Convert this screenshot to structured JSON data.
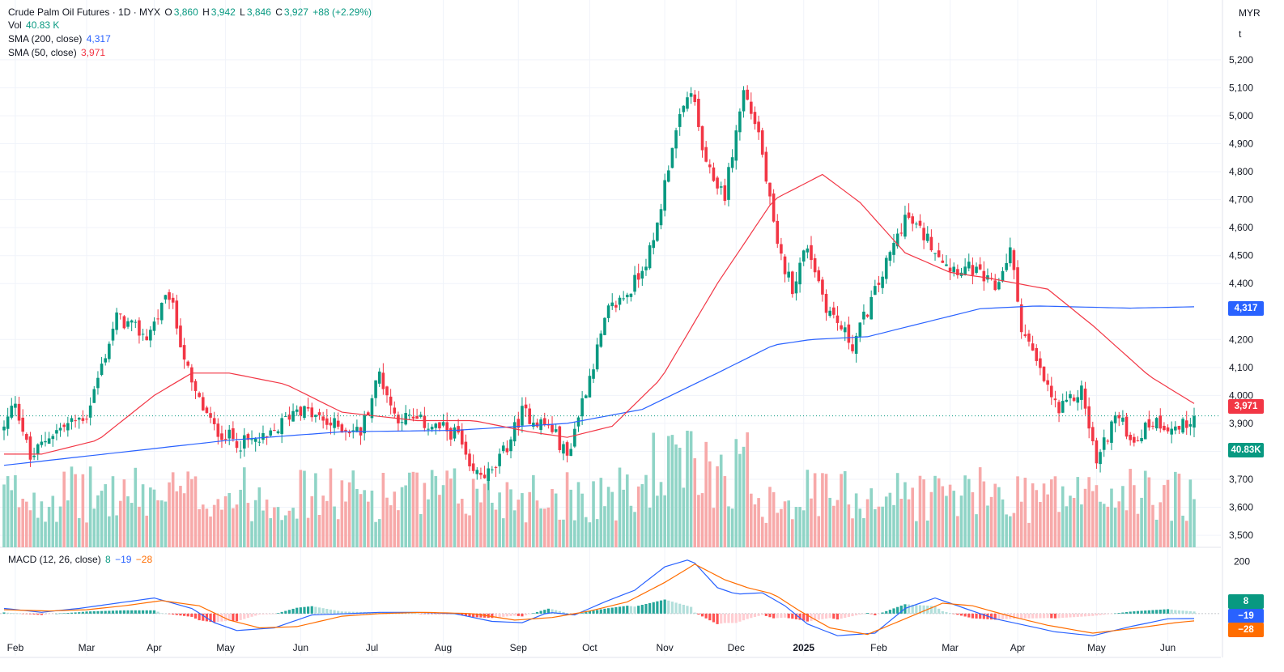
{
  "header": {
    "symbol": "Crude Palm Oil Futures · 1D · MYX",
    "o_label": "O",
    "o": "3,860",
    "h_label": "H",
    "h": "3,942",
    "l_label": "L",
    "l": "3,846",
    "c_label": "C",
    "c": "3,927",
    "change": "+88 (+2.29%)",
    "vol_label": "Vol",
    "vol": "40.83 K",
    "sma200_label": "SMA (200, close)",
    "sma200": "4,317",
    "sma50_label": "SMA (50, close)",
    "sma50": "3,971",
    "macd_label": "MACD (12, 26, close)",
    "macd_hist": "8",
    "macd_line": "−19",
    "macd_signal": "−28"
  },
  "price_axis": {
    "currency": "MYR",
    "unit": "t"
  },
  "badges": {
    "sma200": "4,317",
    "sma50": "3,971",
    "volume": "40.83K",
    "hist": "8",
    "macd": "−19",
    "signal": "−28"
  },
  "colors": {
    "up": "#089981",
    "down": "#f23645",
    "sma200": "#2962ff",
    "sma50": "#f23645",
    "macd": "#2962ff",
    "signal": "#ff6d00"
  },
  "chart_data": {
    "type": "candlestick",
    "price_ticks": [
      "5,200",
      "5,100",
      "5,000",
      "4,900",
      "4,800",
      "4,700",
      "4,600",
      "4,500",
      "4,400",
      "4,200",
      "4,100",
      "4,000",
      "3,900",
      "3,800",
      "3,700",
      "3,600",
      "3,500"
    ],
    "price_tick_values": [
      5200,
      5100,
      5000,
      4900,
      4800,
      4700,
      4600,
      4500,
      4400,
      4200,
      4100,
      4000,
      3900,
      3800,
      3700,
      3600,
      3500
    ],
    "ylim": [
      3480,
      5220
    ],
    "macd_ticks": [
      "200"
    ],
    "macd_tick_values": [
      200
    ],
    "macd_ylim": [
      -100,
      230
    ],
    "x_labels": [
      "Feb",
      "Mar",
      "Apr",
      "May",
      "Jun",
      "Jul",
      "Aug",
      "Sep",
      "Oct",
      "Nov",
      "Dec",
      "2025",
      "Feb",
      "Mar",
      "Apr",
      "May",
      "Jun"
    ],
    "x_label_index": [
      3,
      22,
      40,
      59,
      79,
      98,
      117,
      137,
      156,
      176,
      195,
      213,
      233,
      252,
      270,
      291,
      310
    ],
    "total_bars": 318,
    "last_close": 3927,
    "price_path": [
      [
        0,
        3880
      ],
      [
        3,
        3985
      ],
      [
        7,
        3770
      ],
      [
        12,
        3860
      ],
      [
        22,
        3930
      ],
      [
        30,
        4280
      ],
      [
        38,
        4210
      ],
      [
        44,
        4360
      ],
      [
        50,
        4030
      ],
      [
        56,
        3880
      ],
      [
        63,
        3830
      ],
      [
        70,
        3840
      ],
      [
        78,
        3960
      ],
      [
        86,
        3900
      ],
      [
        95,
        3870
      ],
      [
        100,
        4080
      ],
      [
        104,
        3930
      ],
      [
        112,
        3900
      ],
      [
        121,
        3860
      ],
      [
        124,
        3720
      ],
      [
        130,
        3720
      ],
      [
        134,
        3820
      ],
      [
        138,
        3940
      ],
      [
        146,
        3880
      ],
      [
        150,
        3780
      ],
      [
        154,
        3980
      ],
      [
        161,
        4300
      ],
      [
        167,
        4380
      ],
      [
        173,
        4540
      ],
      [
        178,
        4900
      ],
      [
        183,
        5100
      ],
      [
        187,
        4810
      ],
      [
        192,
        4720
      ],
      [
        197,
        5090
      ],
      [
        201,
        4940
      ],
      [
        206,
        4520
      ],
      [
        210,
        4390
      ],
      [
        214,
        4540
      ],
      [
        219,
        4320
      ],
      [
        226,
        4180
      ],
      [
        233,
        4400
      ],
      [
        240,
        4640
      ],
      [
        246,
        4560
      ],
      [
        252,
        4460
      ],
      [
        258,
        4450
      ],
      [
        264,
        4380
      ],
      [
        268,
        4520
      ],
      [
        271,
        4250
      ],
      [
        276,
        4080
      ],
      [
        281,
        3940
      ],
      [
        287,
        4020
      ],
      [
        291,
        3760
      ],
      [
        296,
        3930
      ],
      [
        301,
        3840
      ],
      [
        306,
        3910
      ],
      [
        313,
        3880
      ],
      [
        317,
        3927
      ]
    ],
    "sma200_path": [
      [
        0,
        3750
      ],
      [
        40,
        3810
      ],
      [
        60,
        3840
      ],
      [
        90,
        3870
      ],
      [
        120,
        3875
      ],
      [
        150,
        3900
      ],
      [
        170,
        3950
      ],
      [
        190,
        4080
      ],
      [
        205,
        4180
      ],
      [
        215,
        4200
      ],
      [
        230,
        4210
      ],
      [
        245,
        4260
      ],
      [
        260,
        4310
      ],
      [
        275,
        4320
      ],
      [
        300,
        4312
      ],
      [
        317,
        4317
      ]
    ],
    "sma50_path": [
      [
        0,
        3790
      ],
      [
        10,
        3790
      ],
      [
        25,
        3840
      ],
      [
        40,
        4000
      ],
      [
        50,
        4080
      ],
      [
        60,
        4080
      ],
      [
        75,
        4040
      ],
      [
        90,
        3940
      ],
      [
        110,
        3910
      ],
      [
        125,
        3910
      ],
      [
        140,
        3870
      ],
      [
        150,
        3850
      ],
      [
        162,
        3890
      ],
      [
        175,
        4060
      ],
      [
        190,
        4400
      ],
      [
        205,
        4700
      ],
      [
        218,
        4790
      ],
      [
        228,
        4690
      ],
      [
        240,
        4510
      ],
      [
        252,
        4440
      ],
      [
        262,
        4420
      ],
      [
        278,
        4380
      ],
      [
        290,
        4250
      ],
      [
        305,
        4070
      ],
      [
        317,
        3971
      ]
    ],
    "volume_base": 30,
    "volume_max": 100,
    "macd_path": [
      [
        0,
        20
      ],
      [
        10,
        5
      ],
      [
        20,
        20
      ],
      [
        30,
        40
      ],
      [
        40,
        60
      ],
      [
        50,
        20
      ],
      [
        56,
        -35
      ],
      [
        62,
        -65
      ],
      [
        72,
        -55
      ],
      [
        82,
        -5
      ],
      [
        92,
        0
      ],
      [
        100,
        5
      ],
      [
        110,
        5
      ],
      [
        120,
        0
      ],
      [
        130,
        -30
      ],
      [
        138,
        -35
      ],
      [
        145,
        5
      ],
      [
        152,
        -5
      ],
      [
        160,
        45
      ],
      [
        168,
        90
      ],
      [
        176,
        180
      ],
      [
        183,
        210
      ],
      [
        190,
        100
      ],
      [
        195,
        75
      ],
      [
        202,
        80
      ],
      [
        208,
        30
      ],
      [
        214,
        -40
      ],
      [
        222,
        -85
      ],
      [
        232,
        -75
      ],
      [
        240,
        20
      ],
      [
        248,
        60
      ],
      [
        256,
        20
      ],
      [
        264,
        -20
      ],
      [
        272,
        -45
      ],
      [
        280,
        -70
      ],
      [
        290,
        -85
      ],
      [
        300,
        -50
      ],
      [
        310,
        -20
      ],
      [
        317,
        -19
      ]
    ],
    "signal_path": [
      [
        0,
        15
      ],
      [
        12,
        10
      ],
      [
        22,
        15
      ],
      [
        32,
        30
      ],
      [
        42,
        50
      ],
      [
        52,
        30
      ],
      [
        60,
        -25
      ],
      [
        68,
        -55
      ],
      [
        78,
        -50
      ],
      [
        90,
        -10
      ],
      [
        100,
        0
      ],
      [
        112,
        5
      ],
      [
        125,
        0
      ],
      [
        136,
        -25
      ],
      [
        146,
        -15
      ],
      [
        156,
        10
      ],
      [
        166,
        45
      ],
      [
        176,
        120
      ],
      [
        184,
        190
      ],
      [
        192,
        130
      ],
      [
        198,
        100
      ],
      [
        205,
        75
      ],
      [
        212,
        10
      ],
      [
        220,
        -55
      ],
      [
        230,
        -80
      ],
      [
        240,
        -20
      ],
      [
        250,
        40
      ],
      [
        258,
        30
      ],
      [
        268,
        -10
      ],
      [
        278,
        -45
      ],
      [
        290,
        -75
      ],
      [
        302,
        -55
      ],
      [
        312,
        -35
      ],
      [
        317,
        -28
      ]
    ]
  }
}
